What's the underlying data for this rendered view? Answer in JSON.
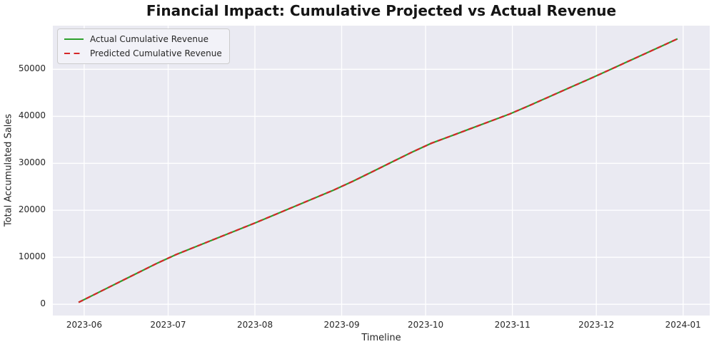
{
  "chart_data": {
    "type": "line",
    "title": "Financial Impact: Cumulative Projected vs Actual Revenue",
    "xlabel": "Timeline",
    "ylabel": "Total Accumulated Sales",
    "plot_bg": "#eaeaf2",
    "grid_color": "#ffffff",
    "grid": true,
    "legend_position": "upper left",
    "x_epoch": "2023-05-30",
    "xlim_days": [
      -9.2,
      225.5
    ],
    "ylim": [
      -2400,
      59300
    ],
    "x_ticks": [
      "2023-06",
      "2023-07",
      "2023-08",
      "2023-09",
      "2023-10",
      "2023-11",
      "2023-12",
      "2024-01"
    ],
    "y_ticks": [
      0,
      10000,
      20000,
      30000,
      40000,
      50000
    ],
    "x": [
      "2023-05-30",
      "2023-06-06",
      "2023-06-13",
      "2023-06-20",
      "2023-06-27",
      "2023-07-04",
      "2023-07-11",
      "2023-07-18",
      "2023-07-25",
      "2023-08-01",
      "2023-08-08",
      "2023-08-15",
      "2023-08-22",
      "2023-08-29",
      "2023-09-05",
      "2023-09-12",
      "2023-09-19",
      "2023-09-26",
      "2023-10-03",
      "2023-10-10",
      "2023-10-17",
      "2023-10-24",
      "2023-10-31",
      "2023-11-07",
      "2023-11-14",
      "2023-11-21",
      "2023-11-28",
      "2023-12-05",
      "2023-12-12",
      "2023-12-19",
      "2023-12-26",
      "2023-12-30"
    ],
    "series": [
      {
        "name": "Actual Cumulative Revenue",
        "color": "#2ca02c",
        "style": "solid",
        "values": [
          400,
          2480,
          4560,
          6640,
          8710,
          10620,
          12290,
          13960,
          15630,
          17300,
          19040,
          20780,
          22520,
          24260,
          26170,
          28230,
          30280,
          32330,
          34250,
          35800,
          37360,
          38920,
          40480,
          42280,
          44120,
          45970,
          47810,
          49690,
          51600,
          53500,
          55410,
          56500
        ]
      },
      {
        "name": "Predicted Cumulative Revenue",
        "color": "#d62728",
        "style": "dashed",
        "values": [
          400,
          2480,
          4560,
          6640,
          8710,
          10620,
          12290,
          13960,
          15630,
          17300,
          19040,
          20780,
          22520,
          24260,
          26170,
          28230,
          30280,
          32330,
          34250,
          35800,
          37360,
          38920,
          40480,
          42280,
          44120,
          45970,
          47810,
          49690,
          51600,
          53500,
          55410,
          56500
        ]
      }
    ]
  }
}
